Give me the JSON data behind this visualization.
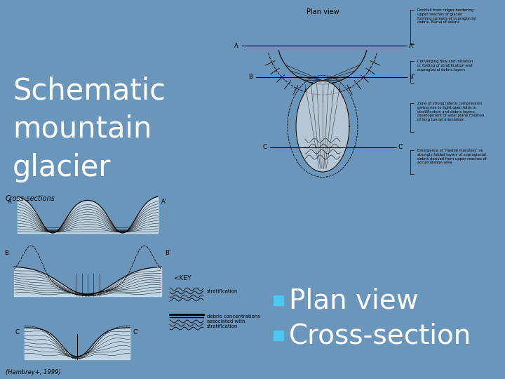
{
  "title_line1": "Schematic",
  "title_line2": "mountain",
  "title_line3": "glacier",
  "bullet1": "Plan view",
  "bullet2": "Cross-section",
  "bg_color": "#6b96bc",
  "white": "#ffffff",
  "text_color": "white",
  "bullet_color": "#4dc8f0",
  "title_fontsize": 30,
  "bullet_fontsize": 28,
  "plan_view_label": "Plan view",
  "cross_sections_label": "Cross-sections",
  "citation": "(Hambrey+, 1999)",
  "key_label": "<KEY",
  "strat_label": "stratification",
  "debris_label": "debris concentrations\nassociated with\nstratification",
  "ann1": "Rockfall from ridges bordering\nupper reaches of glacier\nforming spreads of supraglacial\ndebris. Burial of debris",
  "ann2": "Converging flow and initiation\nor folding of stratification and\nsupraglacial debris layers",
  "ann3": "Zone of strong lateral compression\ngiving rise to tight open folds in\nstratification and debris layers;\ndevelopment of axial plane foliation\nof long tunnel orientation",
  "ann4": "Emergence of 'medial moraines' as\nstrongly folded layers of supraglacial\ndebris derived from upper reaches of\naccumulation area"
}
